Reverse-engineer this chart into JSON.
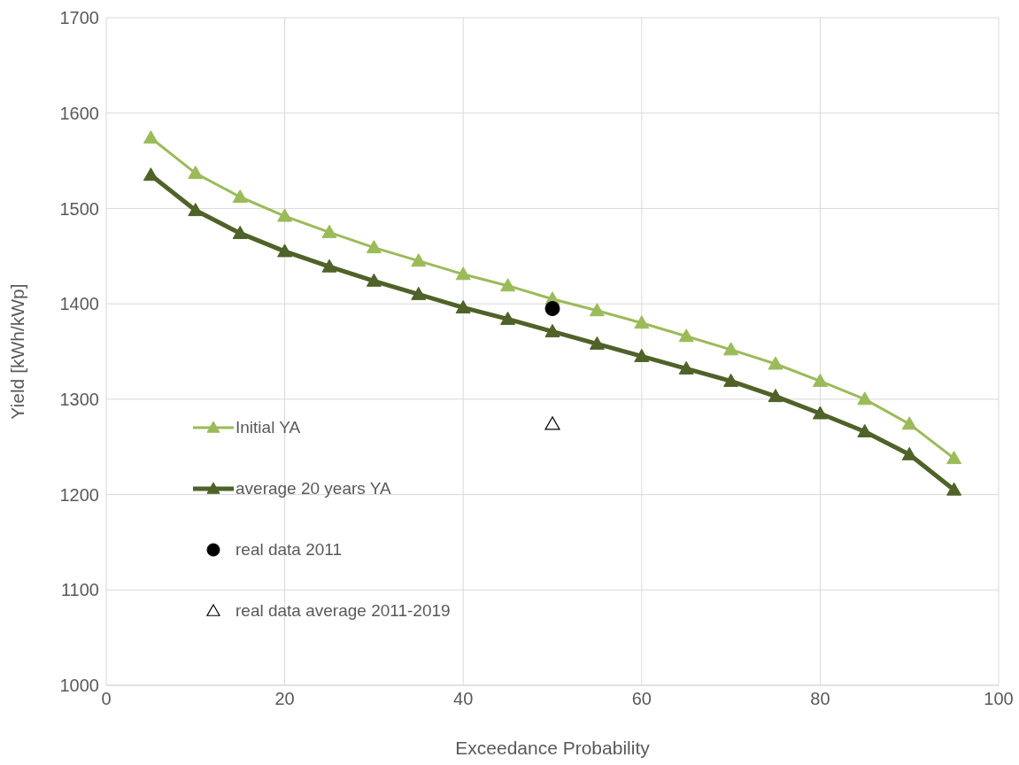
{
  "chart_data": {
    "type": "line",
    "xlabel": "Exceedance Probability",
    "ylabel": "Yield [kWh/kWp]",
    "x": [
      5,
      10,
      15,
      20,
      25,
      30,
      35,
      40,
      45,
      50,
      55,
      60,
      65,
      70,
      75,
      80,
      85,
      90,
      95
    ],
    "series": [
      {
        "name": "Initial YA",
        "color": "#9bbb59",
        "marker": "triangle",
        "values": [
          1574,
          1537,
          1512,
          1492,
          1475,
          1459,
          1445,
          1431,
          1419,
          1405,
          1393,
          1380,
          1366,
          1352,
          1337,
          1319,
          1300,
          1274,
          1238
        ]
      },
      {
        "name": "average 20 years YA",
        "color": "#4f6228",
        "marker": "triangle",
        "values": [
          1535,
          1498,
          1474,
          1455,
          1439,
          1424,
          1410,
          1396,
          1384,
          1371,
          1358,
          1345,
          1332,
          1319,
          1303,
          1285,
          1266,
          1242,
          1205
        ]
      },
      {
        "name": "real data 2011",
        "type": "scatter",
        "color": "#000000",
        "marker": "circle",
        "x": [
          50
        ],
        "values": [
          1395
        ]
      },
      {
        "name": "real data average 2011-2019",
        "type": "scatter",
        "color": "#000000",
        "marker": "triangle_open",
        "x": [
          50
        ],
        "values": [
          1274
        ]
      }
    ],
    "xlim": [
      0,
      100
    ],
    "xticks": [
      0,
      20,
      40,
      60,
      80,
      100
    ],
    "ylim": [
      1000,
      1700
    ],
    "yticks": [
      1000,
      1100,
      1200,
      1300,
      1400,
      1500,
      1600,
      1700
    ],
    "grid": true,
    "legend": "left"
  }
}
